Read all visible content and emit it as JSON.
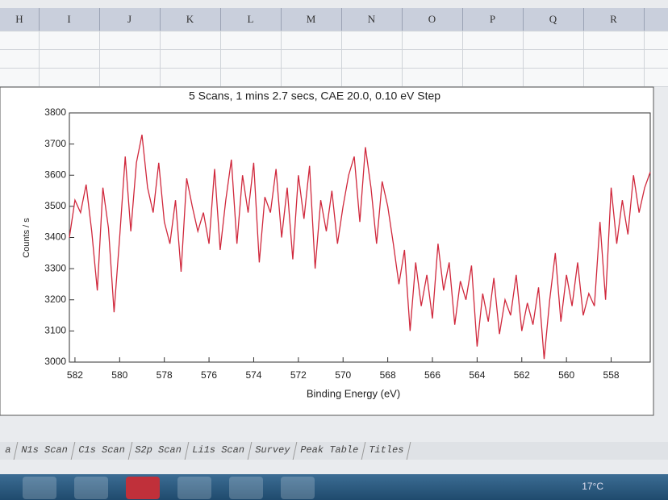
{
  "spreadsheet": {
    "columns": [
      "H",
      "I",
      "J",
      "K",
      "L",
      "M",
      "N",
      "O",
      "P",
      "Q",
      "R"
    ]
  },
  "chart_data": {
    "type": "line",
    "title": "5 Scans,  1 mins 2.7 secs,  CAE 20.0,  0.10 eV Step",
    "x_label": "Binding Energy (eV)",
    "y_label": "Counts / s",
    "x": [
      582.25,
      582.0,
      581.75,
      581.5,
      581.25,
      581.0,
      580.75,
      580.5,
      580.25,
      580.0,
      579.75,
      579.5,
      579.25,
      579.0,
      578.75,
      578.5,
      578.25,
      578.0,
      577.75,
      577.5,
      577.25,
      577.0,
      576.75,
      576.5,
      576.25,
      576.0,
      575.75,
      575.5,
      575.25,
      575.0,
      574.75,
      574.5,
      574.25,
      574.0,
      573.75,
      573.5,
      573.25,
      573.0,
      572.75,
      572.5,
      572.25,
      572.0,
      571.75,
      571.5,
      571.25,
      571.0,
      570.75,
      570.5,
      570.25,
      570.0,
      569.75,
      569.5,
      569.25,
      569.0,
      568.75,
      568.5,
      568.25,
      568.0,
      567.75,
      567.5,
      567.25,
      567.0,
      566.75,
      566.5,
      566.25,
      566.0,
      565.75,
      565.5,
      565.25,
      565.0,
      564.75,
      564.5,
      564.25,
      564.0,
      563.75,
      563.5,
      563.25,
      563.0,
      562.75,
      562.5,
      562.25,
      562.0,
      561.75,
      561.5,
      561.25,
      561.0,
      560.75,
      560.5,
      560.25,
      560.0,
      559.75,
      559.5,
      559.25,
      559.0,
      558.75,
      558.5,
      558.25,
      558.0,
      557.75,
      557.5,
      557.25,
      557.0,
      556.75,
      556.5,
      556.25
    ],
    "values": [
      3400,
      3520,
      3480,
      3570,
      3420,
      3230,
      3560,
      3430,
      3160,
      3400,
      3660,
      3420,
      3640,
      3730,
      3560,
      3480,
      3640,
      3450,
      3380,
      3520,
      3290,
      3590,
      3500,
      3420,
      3480,
      3380,
      3620,
      3360,
      3520,
      3650,
      3380,
      3600,
      3480,
      3640,
      3320,
      3530,
      3480,
      3620,
      3400,
      3560,
      3330,
      3600,
      3460,
      3630,
      3300,
      3520,
      3420,
      3550,
      3380,
      3500,
      3600,
      3660,
      3450,
      3690,
      3560,
      3380,
      3580,
      3500,
      3380,
      3250,
      3360,
      3100,
      3320,
      3180,
      3280,
      3140,
      3380,
      3230,
      3320,
      3120,
      3260,
      3200,
      3310,
      3050,
      3220,
      3130,
      3270,
      3090,
      3200,
      3150,
      3280,
      3100,
      3190,
      3120,
      3240,
      3010,
      3200,
      3350,
      3130,
      3280,
      3180,
      3320,
      3150,
      3220,
      3180,
      3450,
      3200,
      3560,
      3380,
      3520,
      3410,
      3600,
      3480,
      3560,
      3610
    ],
    "color": "#d0283c",
    "xlim": [
      582.25,
      556.25
    ],
    "ylim": [
      3000,
      3800
    ],
    "xticks": [
      582,
      580,
      578,
      576,
      574,
      572,
      570,
      568,
      566,
      564,
      562,
      560,
      558
    ],
    "yticks": [
      3000,
      3100,
      3200,
      3300,
      3400,
      3500,
      3600,
      3700,
      3800
    ]
  },
  "sheet_tabs": [
    "a",
    "N1s Scan",
    "C1s Scan",
    "S2p Scan",
    "Li1s Scan",
    "Survey",
    "Peak Table",
    "Titles"
  ],
  "taskbar": {
    "temperature": "17°C"
  }
}
